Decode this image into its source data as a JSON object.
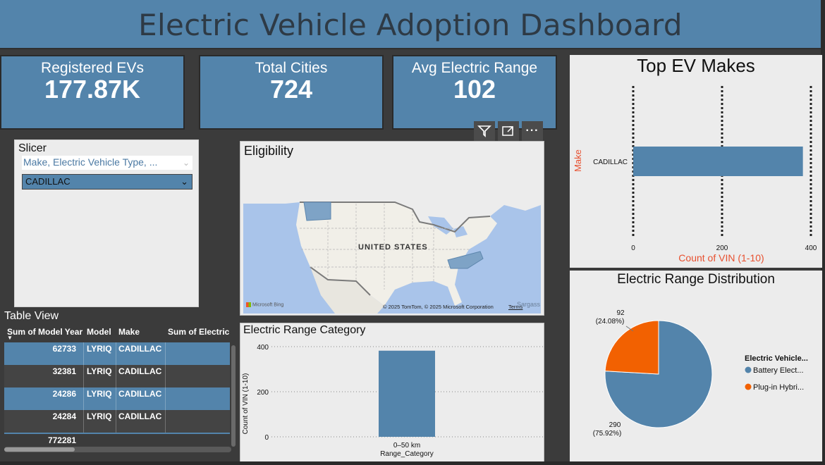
{
  "header": {
    "title": "Electric Vehicle Adoption Dashboard"
  },
  "kpis": [
    {
      "label": "Registered EVs",
      "value": "177.87K"
    },
    {
      "label": "Total Cities",
      "value": "724"
    },
    {
      "label": "Avg Electric Range",
      "value": "102"
    }
  ],
  "slicer": {
    "title": "Slicer",
    "field_placeholder": "Make, Electric Vehicle Type, ...",
    "selected": "CADILLAC"
  },
  "toolbar": {
    "filter_icon": "filter-icon",
    "focus_icon": "focus-mode-icon",
    "more_label": "···"
  },
  "eligibility": {
    "title": "Eligibility",
    "map_label": "UNITED STATES",
    "attribution": "© 2025 TomTom, © 2025 Microsoft Corporation",
    "terms": "Terms",
    "bing": "Microsoft Bing",
    "sargasso": "Sargass"
  },
  "table": {
    "title": "Table View",
    "columns": [
      "Sum of Model Year",
      "Model",
      "Make",
      "Sum of Electric R"
    ],
    "rows": [
      {
        "year": "62733",
        "model": "LYRIQ",
        "make": "CADILLAC"
      },
      {
        "year": "32381",
        "model": "LYRIQ",
        "make": "CADILLAC"
      },
      {
        "year": "24286",
        "model": "LYRIQ",
        "make": "CADILLAC"
      },
      {
        "year": "24284",
        "model": "LYRIQ",
        "make": "CADILLAC"
      }
    ],
    "total": "772281"
  },
  "range_category": {
    "title": "Electric Range Category",
    "ylabel": "Count of VIN (1-10)",
    "xlabel": "Range_Category",
    "yticks": [
      "400",
      "200",
      "0"
    ],
    "category": "0–50 km"
  },
  "top_makes": {
    "title": "Top EV Makes",
    "ylabel": "Make",
    "xlabel": "Count of VIN (1-10)",
    "xticks": [
      "0",
      "200",
      "400"
    ],
    "category": "CADILLAC"
  },
  "range_distribution": {
    "title": "Electric Range Distribution",
    "legend_title": "Electric Vehicle...",
    "legend": [
      {
        "label": "Battery Elect...",
        "color": "#5384ab"
      },
      {
        "label": "Plug-in Hybri...",
        "color": "#f26101"
      }
    ],
    "label_a_value": "92",
    "label_a_pct": "(24.08%)",
    "label_b_value": "290",
    "label_b_pct": "(75.92%)"
  },
  "colors": {
    "accent": "#5384ab",
    "orange": "#f26101",
    "axis_title": "#e8502f"
  },
  "chart_data": [
    {
      "type": "bar",
      "title": "Electric Range Category",
      "xlabel": "Range_Category",
      "ylabel": "Count of VIN (1-10)",
      "categories": [
        "0–50 km"
      ],
      "values": [
        382
      ],
      "ylim": [
        0,
        400
      ]
    },
    {
      "type": "bar",
      "title": "Top EV Makes",
      "orientation": "horizontal",
      "xlabel": "Count of VIN (1-10)",
      "ylabel": "Make",
      "categories": [
        "CADILLAC"
      ],
      "values": [
        382
      ],
      "xlim": [
        0,
        400
      ]
    },
    {
      "type": "pie",
      "title": "Electric Range Distribution",
      "categories": [
        "Battery Elect...",
        "Plug-in Hybri..."
      ],
      "values": [
        290,
        92
      ],
      "percents": [
        75.92,
        24.08
      ]
    }
  ]
}
